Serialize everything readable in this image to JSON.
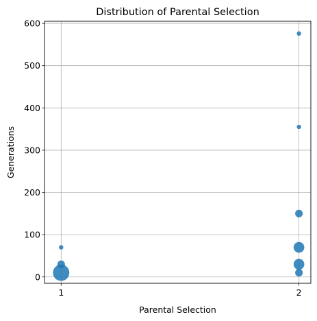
{
  "chart_data": {
    "type": "scatter",
    "title": "Distribution of Parental Selection",
    "xlabel": "Parental Selection",
    "ylabel": "Generations",
    "xlim": [
      0.93,
      2.05
    ],
    "ylim": [
      -15,
      605
    ],
    "grid": true,
    "x_ticks": [
      "1",
      "2"
    ],
    "y_ticks": [
      "0",
      "100",
      "200",
      "300",
      "400",
      "500",
      "600"
    ],
    "color": "#1f77b4",
    "points": [
      {
        "x": 1,
        "y": 10,
        "count": 14
      },
      {
        "x": 1,
        "y": 30,
        "count": 3
      },
      {
        "x": 1,
        "y": 70,
        "count": 1
      },
      {
        "x": 2,
        "y": 10,
        "count": 3
      },
      {
        "x": 2,
        "y": 30,
        "count": 6
      },
      {
        "x": 2,
        "y": 70,
        "count": 6
      },
      {
        "x": 2,
        "y": 150,
        "count": 3
      },
      {
        "x": 2,
        "y": 355,
        "count": 1
      },
      {
        "x": 2,
        "y": 576,
        "count": 1
      }
    ]
  }
}
